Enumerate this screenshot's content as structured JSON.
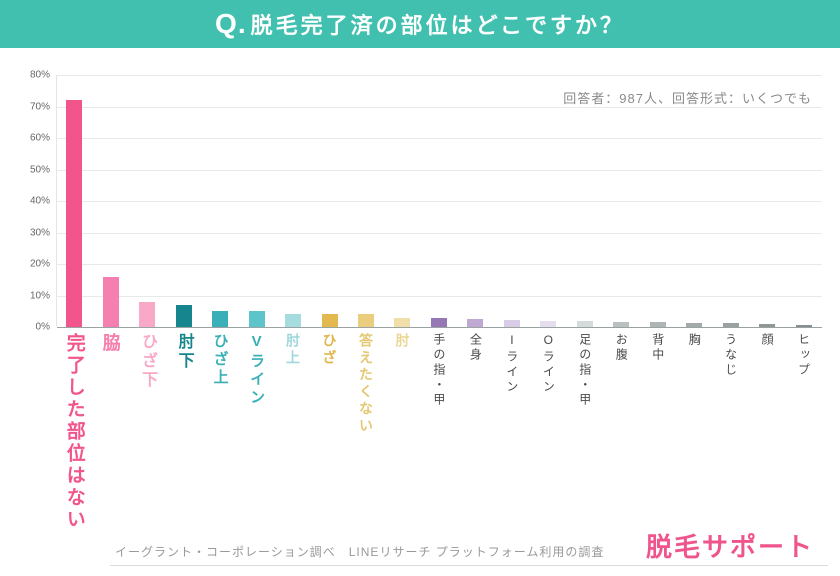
{
  "banner": {
    "q_prefix": "Q.",
    "title": "脱毛完了済の部位はどこですか？"
  },
  "meta_note": "回答者：987人、回答形式：いくつでも",
  "footer": {
    "source": "イーグラント・コーポレーション調べ　LINEリサーチ プラットフォーム利用の調査",
    "logo": "脱毛サポート"
  },
  "colors": {
    "banner_bg": "#41C0B0",
    "logo_pink": "#F0548C"
  },
  "chart_data": {
    "type": "bar",
    "title": "脱毛完了済の部位はどこですか？",
    "xlabel": "",
    "ylabel": "",
    "ylim": [
      0,
      80
    ],
    "yticks": [
      0,
      10,
      20,
      30,
      40,
      50,
      60,
      70,
      80
    ],
    "grid": true,
    "legend": false,
    "categories": [
      "完了した部位はない",
      "脇",
      "ひざ下",
      "肘下",
      "ひざ上",
      "Vライン",
      "肘上",
      "ひざ",
      "答えたくない",
      "肘",
      "手の指・甲",
      "全身",
      "Iライン",
      "Oライン",
      "足の指・甲",
      "お腹",
      "背中",
      "胸",
      "うなじ",
      "顔",
      "ヒップ"
    ],
    "values": [
      72,
      16,
      8,
      7,
      5,
      5,
      4,
      4,
      4,
      3,
      3,
      2.5,
      2.2,
      2,
      2,
      1.6,
      1.5,
      1.3,
      1.2,
      1,
      0.8
    ],
    "bar_colors": [
      "#F2548C",
      "#F57FAE",
      "#F8A9C8",
      "#17858D",
      "#3BAFB8",
      "#5EC4CB",
      "#A5DCE0",
      "#E3B94F",
      "#EACD7E",
      "#F0DFA8",
      "#9678B4",
      "#BFA8D2",
      "#D9CCE6",
      "#E4DEEE",
      "#D5DADA",
      "#B9C0C0",
      "#ADB5B5",
      "#A2AAAA",
      "#99A1A1",
      "#8F9797",
      "#869090"
    ],
    "label_styles": [
      {
        "color": "#F2548C",
        "size": 19,
        "bold": true
      },
      {
        "color": "#F57FAE",
        "size": 18,
        "bold": true
      },
      {
        "color": "#F8A9C8",
        "size": 16,
        "bold": true
      },
      {
        "color": "#17858D",
        "size": 16,
        "bold": true
      },
      {
        "color": "#3BAFB8",
        "size": 15,
        "bold": true
      },
      {
        "color": "#3BAFB8",
        "size": 15,
        "bold": true
      },
      {
        "color": "#9FD8DC",
        "size": 14,
        "bold": true
      },
      {
        "color": "#DFB54A",
        "size": 14,
        "bold": true
      },
      {
        "color": "#E5C873",
        "size": 14,
        "bold": true
      },
      {
        "color": "#EBD795",
        "size": 14,
        "bold": true
      },
      {
        "color": "#4A4A4A",
        "size": 12,
        "bold": false
      },
      {
        "color": "#4A4A4A",
        "size": 12,
        "bold": false
      },
      {
        "color": "#4A4A4A",
        "size": 12,
        "bold": false
      },
      {
        "color": "#4A4A4A",
        "size": 12,
        "bold": false
      },
      {
        "color": "#4A4A4A",
        "size": 12,
        "bold": false
      },
      {
        "color": "#4A4A4A",
        "size": 12,
        "bold": false
      },
      {
        "color": "#4A4A4A",
        "size": 12,
        "bold": false
      },
      {
        "color": "#4A4A4A",
        "size": 12,
        "bold": false
      },
      {
        "color": "#4A4A4A",
        "size": 12,
        "bold": false
      },
      {
        "color": "#4A4A4A",
        "size": 12,
        "bold": false
      },
      {
        "color": "#4A4A4A",
        "size": 12,
        "bold": false
      }
    ]
  }
}
